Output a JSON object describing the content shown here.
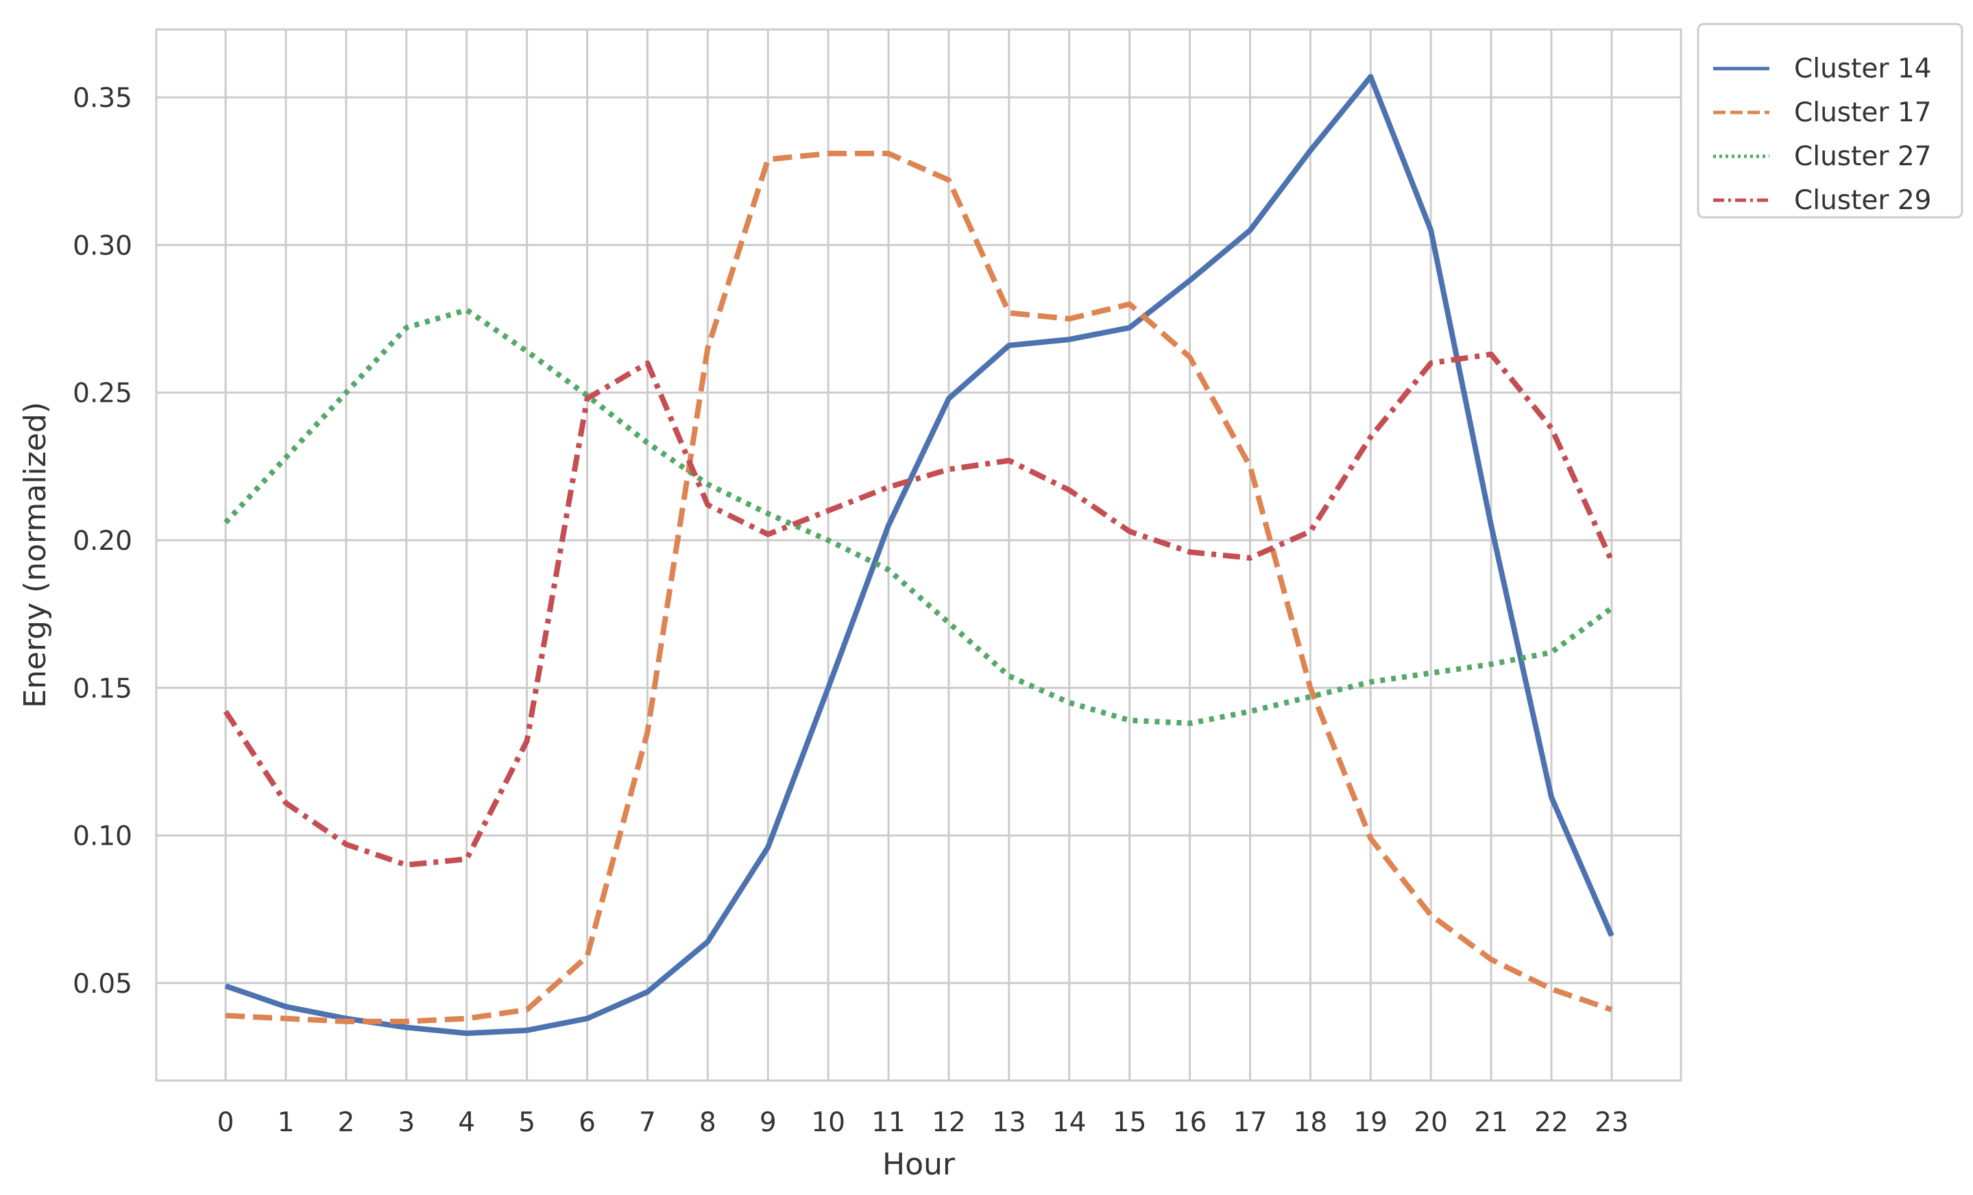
{
  "chart_data": {
    "type": "line",
    "title": "",
    "xlabel": "Hour",
    "ylabel": "Energy (normalized)",
    "x": [
      0,
      1,
      2,
      3,
      4,
      5,
      6,
      7,
      8,
      9,
      10,
      11,
      12,
      13,
      14,
      15,
      16,
      17,
      18,
      19,
      20,
      21,
      22,
      23
    ],
    "xlim": [
      -1.15,
      24.15
    ],
    "ylim": [
      0.017,
      0.373
    ],
    "yticks": [
      0.05,
      0.1,
      0.15,
      0.2,
      0.25,
      0.3,
      0.35
    ],
    "ytick_labels": [
      "0.05",
      "0.10",
      "0.15",
      "0.20",
      "0.25",
      "0.30",
      "0.35"
    ],
    "xtick_labels": [
      "0",
      "1",
      "2",
      "3",
      "4",
      "5",
      "6",
      "7",
      "8",
      "9",
      "10",
      "11",
      "12",
      "13",
      "14",
      "15",
      "16",
      "17",
      "18",
      "19",
      "20",
      "21",
      "22",
      "23"
    ],
    "grid": true,
    "legend_position": "upper-right-outside",
    "series": [
      {
        "name": "Cluster 14",
        "color": "#4c72b0",
        "dash": "solid",
        "values": [
          0.049,
          0.042,
          0.038,
          0.035,
          0.033,
          0.034,
          0.038,
          0.047,
          0.064,
          0.096,
          0.15,
          0.205,
          0.248,
          0.266,
          0.268,
          0.272,
          0.288,
          0.305,
          0.332,
          0.357,
          0.305,
          0.205,
          0.113,
          0.066
        ]
      },
      {
        "name": "Cluster 17",
        "color": "#dd8452",
        "dash": "dashed",
        "values": [
          0.039,
          0.038,
          0.037,
          0.037,
          0.038,
          0.041,
          0.059,
          0.135,
          0.265,
          0.329,
          0.331,
          0.331,
          0.322,
          0.277,
          0.275,
          0.28,
          0.262,
          0.225,
          0.15,
          0.099,
          0.073,
          0.058,
          0.048,
          0.041
        ]
      },
      {
        "name": "Cluster 27",
        "color": "#55a868",
        "dash": "dotted",
        "values": [
          0.206,
          0.228,
          0.25,
          0.272,
          0.278,
          0.264,
          0.249,
          0.233,
          0.219,
          0.209,
          0.2,
          0.19,
          0.172,
          0.154,
          0.145,
          0.139,
          0.138,
          0.142,
          0.147,
          0.152,
          0.155,
          0.158,
          0.162,
          0.177
        ]
      },
      {
        "name": "Cluster 29",
        "color": "#c44e52",
        "dash": "dashdot",
        "values": [
          0.142,
          0.111,
          0.097,
          0.09,
          0.092,
          0.132,
          0.248,
          0.26,
          0.212,
          0.202,
          0.21,
          0.218,
          0.224,
          0.227,
          0.217,
          0.203,
          0.196,
          0.194,
          0.203,
          0.235,
          0.26,
          0.263,
          0.238,
          0.193
        ]
      }
    ]
  }
}
